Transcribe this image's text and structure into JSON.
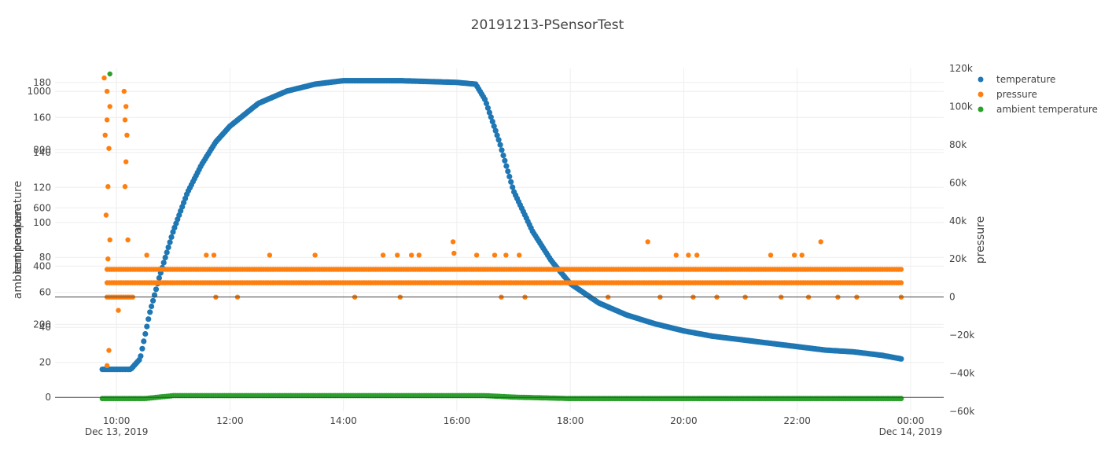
{
  "chart_data": {
    "type": "scatter",
    "title": "20191213-PSensorTest",
    "axes": {
      "x": {
        "type": "date",
        "range": [
          "2019-12-13T08:55",
          "2019-12-14T00:35"
        ],
        "ticks": [
          {
            "value": "2019-12-13T10:00",
            "label": "10:00",
            "sublabel": "Dec 13, 2019"
          },
          {
            "value": "2019-12-13T12:00",
            "label": "12:00",
            "sublabel": ""
          },
          {
            "value": "2019-12-13T14:00",
            "label": "14:00",
            "sublabel": ""
          },
          {
            "value": "2019-12-13T16:00",
            "label": "16:00",
            "sublabel": ""
          },
          {
            "value": "2019-12-13T18:00",
            "label": "18:00",
            "sublabel": ""
          },
          {
            "value": "2019-12-13T20:00",
            "label": "20:00",
            "sublabel": ""
          },
          {
            "value": "2019-12-13T22:00",
            "label": "22:00",
            "sublabel": ""
          },
          {
            "value": "2019-12-14T00:00",
            "label": "00:00",
            "sublabel": "Dec 14, 2019"
          }
        ],
        "grid": true
      },
      "y_temperature": {
        "title": "temperature",
        "range": [
          -8,
          188
        ],
        "ticks": [
          0,
          20,
          40,
          60,
          80,
          100,
          120,
          140,
          160,
          180
        ],
        "grid": true
      },
      "y_ambient": {
        "title": "ambient temperature",
        "range": [
          -99,
          1079
        ],
        "ticks": [
          200,
          400,
          600,
          800,
          1000
        ],
        "grid": true
      },
      "y_pressure": {
        "title": "pressure",
        "range": [
          -60000,
          120000
        ],
        "ticks": [
          -60000,
          -40000,
          -20000,
          0,
          20000,
          40000,
          60000,
          80000,
          100000,
          120000
        ],
        "tick_labels": [
          "−60k",
          "−40k",
          "−20k",
          "0",
          "20k",
          "40k",
          "60k",
          "80k",
          "100k",
          "120k"
        ],
        "zero_line": true
      }
    },
    "legend": {
      "placement": "top-right",
      "entries": [
        {
          "name": "temperature",
          "color": "#1f77b4"
        },
        {
          "name": "pressure",
          "color": "#ff7f0e"
        },
        {
          "name": "ambient temperature",
          "color": "#2ca02c"
        }
      ]
    },
    "series": [
      {
        "name": "temperature",
        "color": "#1f77b4",
        "axis": "y_temperature",
        "x": [
          "2019-12-13T09:45",
          "2019-12-13T10:00",
          "2019-12-13T10:15",
          "2019-12-13T10:25",
          "2019-12-13T10:35",
          "2019-12-13T10:45",
          "2019-12-13T11:00",
          "2019-12-13T11:15",
          "2019-12-13T11:30",
          "2019-12-13T11:45",
          "2019-12-13T12:00",
          "2019-12-13T12:30",
          "2019-12-13T13:00",
          "2019-12-13T13:30",
          "2019-12-13T14:00",
          "2019-12-13T15:00",
          "2019-12-13T16:00",
          "2019-12-13T16:20",
          "2019-12-13T16:30",
          "2019-12-13T16:45",
          "2019-12-13T17:00",
          "2019-12-13T17:20",
          "2019-12-13T17:40",
          "2019-12-13T18:00",
          "2019-12-13T18:30",
          "2019-12-13T19:00",
          "2019-12-13T19:30",
          "2019-12-13T20:00",
          "2019-12-13T20:30",
          "2019-12-13T21:00",
          "2019-12-13T21:30",
          "2019-12-13T22:00",
          "2019-12-13T22:30",
          "2019-12-13T23:00",
          "2019-12-13T23:30",
          "2019-12-13T23:50"
        ],
        "y": [
          16,
          16,
          16,
          22,
          48,
          68,
          95,
          117,
          133,
          146,
          155,
          168,
          175,
          179,
          181,
          181,
          180,
          179,
          170,
          146,
          118,
          95,
          78,
          65,
          54,
          47,
          42,
          38,
          35,
          33,
          31,
          29,
          27,
          26,
          24,
          22
        ]
      },
      {
        "name": "pressure",
        "color": "#ff7f0e",
        "axis": "y_pressure",
        "bands": [
          14500,
          7500,
          0
        ],
        "x": [
          "2019-12-13T09:47",
          "2019-12-13T09:50",
          "2019-12-13T09:53",
          "2019-12-13T09:50",
          "2019-12-13T09:48",
          "2019-12-13T09:52",
          "2019-12-13T09:51",
          "2019-12-13T09:49",
          "2019-12-13T09:53",
          "2019-12-13T09:51",
          "2019-12-13T09:52",
          "2019-12-13T09:50",
          "2019-12-13T10:08",
          "2019-12-13T10:10",
          "2019-12-13T10:09",
          "2019-12-13T10:11",
          "2019-12-13T10:10",
          "2019-12-13T10:09",
          "2019-12-13T10:12",
          "2019-12-13T10:02",
          "2019-12-13T10:32",
          "2019-12-13T11:35",
          "2019-12-13T11:43",
          "2019-12-13T12:42",
          "2019-12-13T13:30",
          "2019-12-13T14:42",
          "2019-12-13T14:57",
          "2019-12-13T15:12",
          "2019-12-13T15:20",
          "2019-12-13T15:56",
          "2019-12-13T15:57",
          "2019-12-13T16:21",
          "2019-12-13T16:40",
          "2019-12-13T16:52",
          "2019-12-13T17:06",
          "2019-12-13T19:22",
          "2019-12-13T19:52",
          "2019-12-13T20:05",
          "2019-12-13T20:14",
          "2019-12-13T21:32",
          "2019-12-13T21:57",
          "2019-12-13T22:05",
          "2019-12-13T22:25",
          "2019-12-13T11:45",
          "2019-12-13T12:08",
          "2019-12-13T14:12",
          "2019-12-13T15:00",
          "2019-12-13T16:47",
          "2019-12-13T17:12",
          "2019-12-13T18:40",
          "2019-12-13T19:35",
          "2019-12-13T20:10",
          "2019-12-13T20:35",
          "2019-12-13T21:05",
          "2019-12-13T21:43",
          "2019-12-13T22:12",
          "2019-12-13T22:43",
          "2019-12-13T23:03",
          "2019-12-13T23:50"
        ],
        "y": [
          115000,
          108000,
          100000,
          93000,
          85000,
          78000,
          58000,
          43000,
          30000,
          20000,
          -28000,
          -36000,
          108000,
          100000,
          93000,
          85000,
          71000,
          58000,
          30000,
          -7000,
          22000,
          22000,
          22000,
          22000,
          22000,
          22000,
          22000,
          22000,
          22000,
          29000,
          23000,
          22000,
          22000,
          22000,
          22000,
          29000,
          22000,
          22000,
          22000,
          22000,
          22000,
          22000,
          29000,
          0,
          0,
          0,
          0,
          0,
          0,
          0,
          0,
          0,
          0,
          0,
          0,
          0,
          0,
          0,
          0
        ]
      },
      {
        "name": "ambient temperature",
        "color": "#2ca02c",
        "axis": "y_ambient",
        "x": [
          "2019-12-13T09:45",
          "2019-12-13T10:30",
          "2019-12-13T11:00",
          "2019-12-13T12:00",
          "2019-12-13T14:00",
          "2019-12-13T16:30",
          "2019-12-13T17:00",
          "2019-12-13T18:00",
          "2019-12-13T20:00",
          "2019-12-13T22:00",
          "2019-12-13T23:50"
        ],
        "y": [
          -55,
          -55,
          -45,
          -45,
          -45,
          -45,
          -50,
          -55,
          -55,
          -55,
          -55
        ],
        "outliers": [
          {
            "x": "2019-12-13T09:53",
            "y": 1060
          }
        ]
      }
    ]
  }
}
